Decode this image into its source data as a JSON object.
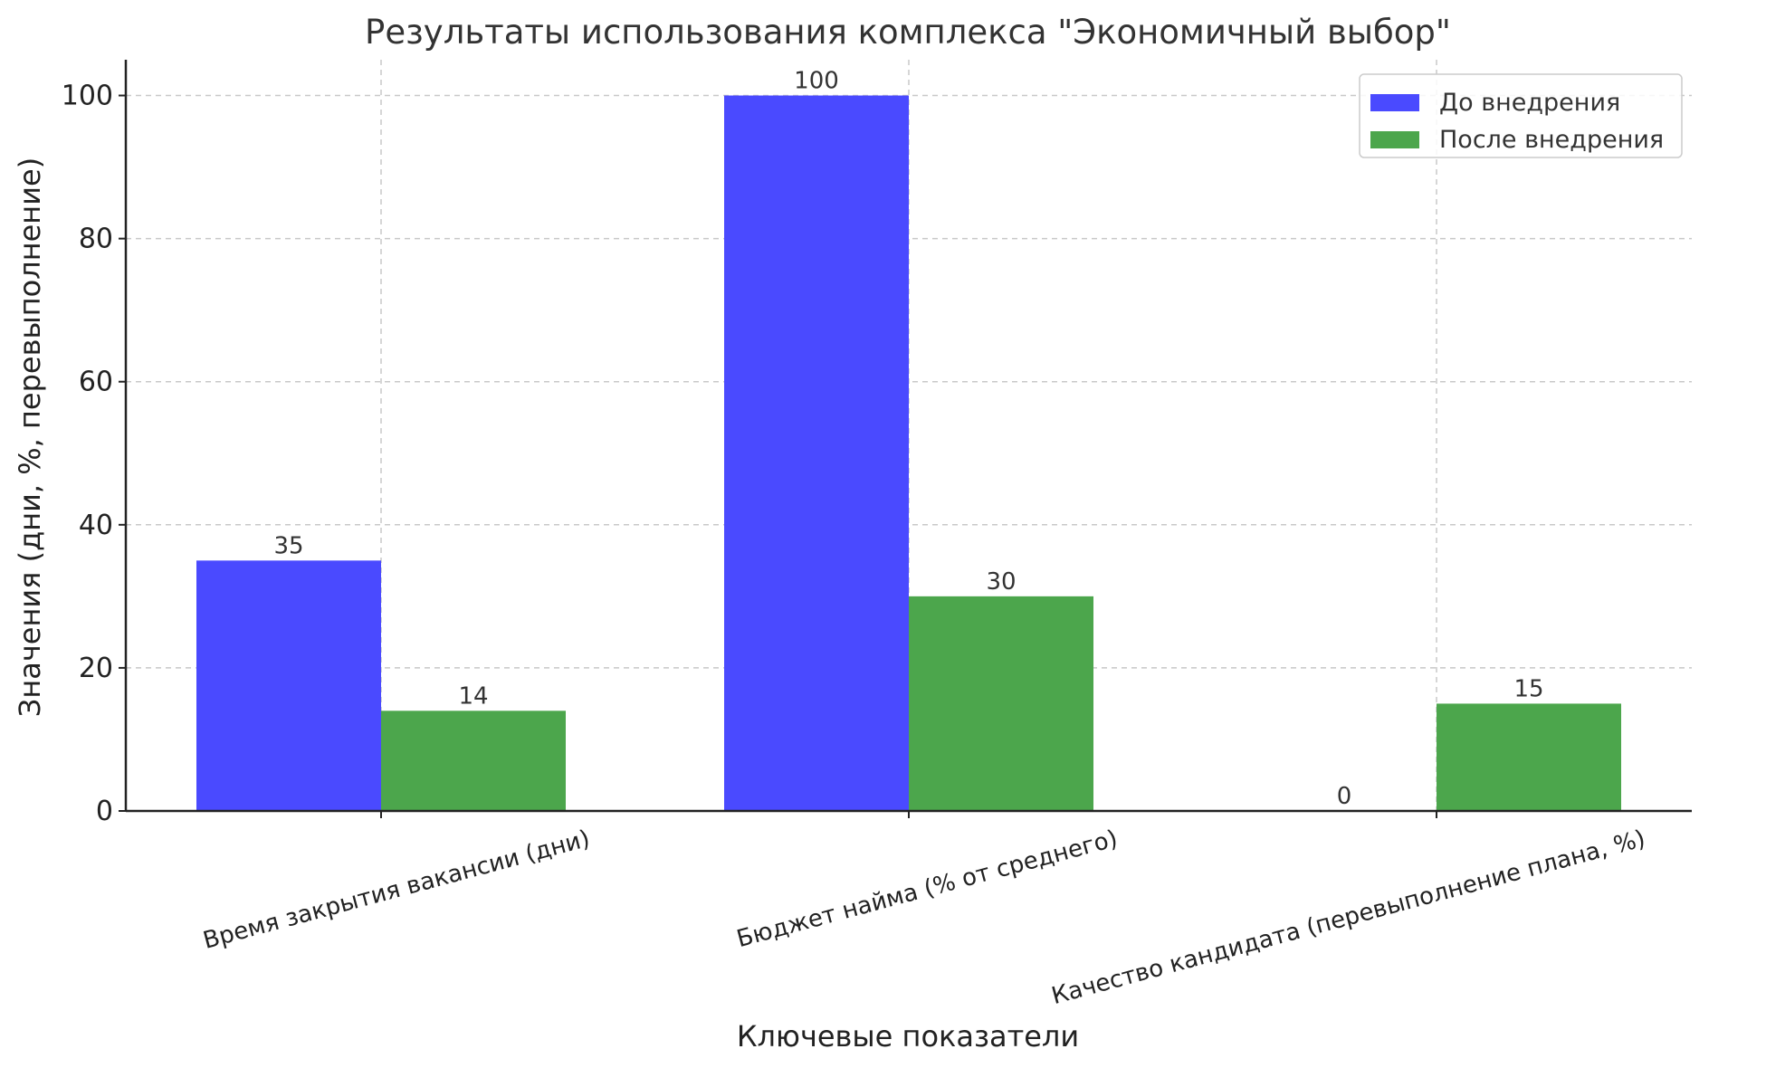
{
  "chart_data": {
    "type": "bar",
    "title": "Результаты использования комплекса \"Экономичный выбор\"",
    "xlabel": "Ключевые показатели",
    "ylabel": "Значения (дни, %, перевыполнение)",
    "categories": [
      "Время закрытия вакансии (дни)",
      "Бюджет найма (% от среднего)",
      "Качество кандидата (перевыполнение плана, %)"
    ],
    "series": [
      {
        "name": "До внедрения",
        "values": [
          35,
          100,
          0
        ],
        "color": "#4a4aff"
      },
      {
        "name": "После внедрения",
        "values": [
          14,
          30,
          15
        ],
        "color": "#4ca64c"
      }
    ],
    "ylim": [
      0,
      105
    ],
    "yticks": [
      0,
      20,
      40,
      60,
      80,
      100
    ],
    "grid": true,
    "legend_position": "top-right"
  }
}
